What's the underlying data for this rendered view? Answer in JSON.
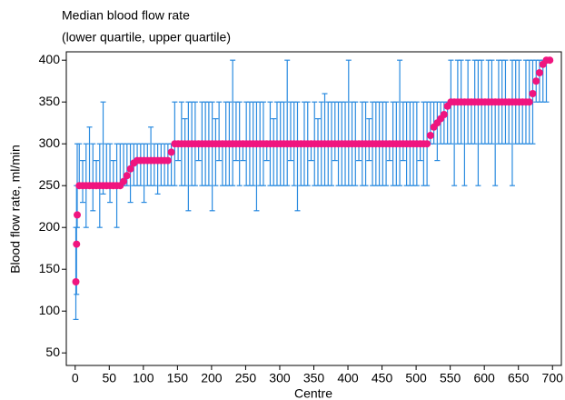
{
  "chart_data": {
    "type": "errorbar",
    "title": "Median blood flow rate",
    "subtitle": "(lower quartile, upper quartile)",
    "x_label": "Centre",
    "y_label": "Blood flow rate, ml/min",
    "xlim": [
      -13,
      713
    ],
    "ylim": [
      35,
      410
    ],
    "xticks": [
      0,
      50,
      100,
      150,
      200,
      250,
      300,
      350,
      400,
      450,
      500,
      550,
      600,
      650,
      700
    ],
    "yticks": [
      50,
      100,
      150,
      200,
      250,
      300,
      350,
      400
    ],
    "median_color": "#f0157f",
    "bar_color": "#2a8be0",
    "x": [
      1,
      2,
      3,
      6,
      11,
      16,
      21,
      26,
      31,
      36,
      41,
      46,
      51,
      56,
      61,
      66,
      71,
      76,
      81,
      86,
      91,
      96,
      101,
      106,
      111,
      116,
      121,
      126,
      131,
      136,
      141,
      146,
      151,
      156,
      161,
      166,
      171,
      176,
      181,
      186,
      191,
      196,
      201,
      206,
      211,
      216,
      221,
      226,
      231,
      236,
      241,
      246,
      251,
      256,
      261,
      266,
      271,
      276,
      281,
      286,
      291,
      296,
      301,
      306,
      311,
      316,
      321,
      326,
      331,
      336,
      341,
      346,
      351,
      356,
      361,
      366,
      371,
      376,
      381,
      386,
      391,
      396,
      401,
      406,
      411,
      416,
      421,
      426,
      431,
      436,
      441,
      446,
      451,
      456,
      461,
      466,
      471,
      476,
      481,
      486,
      491,
      496,
      501,
      506,
      511,
      516,
      521,
      526,
      531,
      536,
      541,
      546,
      551,
      556,
      561,
      566,
      571,
      576,
      581,
      586,
      591,
      596,
      601,
      606,
      611,
      616,
      621,
      626,
      631,
      636,
      641,
      646,
      651,
      656,
      661,
      666,
      671,
      676,
      681,
      686,
      691,
      696
    ],
    "values": [
      135,
      180,
      215,
      250,
      250,
      250,
      250,
      250,
      250,
      250,
      250,
      250,
      250,
      250,
      250,
      250,
      255,
      262,
      270,
      277,
      280,
      280,
      280,
      280,
      280,
      280,
      280,
      280,
      280,
      280,
      290,
      300,
      300,
      300,
      300,
      300,
      300,
      300,
      300,
      300,
      300,
      300,
      300,
      300,
      300,
      300,
      300,
      300,
      300,
      300,
      300,
      300,
      300,
      300,
      300,
      300,
      300,
      300,
      300,
      300,
      300,
      300,
      300,
      300,
      300,
      300,
      300,
      300,
      300,
      300,
      300,
      300,
      300,
      300,
      300,
      300,
      300,
      300,
      300,
      300,
      300,
      300,
      300,
      300,
      300,
      300,
      300,
      300,
      300,
      300,
      300,
      300,
      300,
      300,
      300,
      300,
      300,
      300,
      300,
      300,
      300,
      300,
      300,
      300,
      300,
      300,
      310,
      320,
      325,
      330,
      335,
      345,
      350,
      350,
      350,
      350,
      350,
      350,
      350,
      350,
      350,
      350,
      350,
      350,
      350,
      350,
      350,
      350,
      350,
      350,
      350,
      350,
      350,
      350,
      350,
      350,
      360,
      375,
      385,
      395,
      400,
      400
    ],
    "lower": [
      90,
      120,
      200,
      250,
      230,
      200,
      250,
      220,
      250,
      200,
      240,
      250,
      230,
      250,
      200,
      250,
      250,
      250,
      230,
      250,
      250,
      250,
      230,
      250,
      250,
      250,
      240,
      250,
      250,
      250,
      250,
      250,
      280,
      250,
      250,
      220,
      250,
      250,
      280,
      250,
      250,
      250,
      220,
      250,
      280,
      250,
      250,
      250,
      250,
      280,
      250,
      280,
      250,
      250,
      250,
      220,
      250,
      250,
      280,
      250,
      250,
      250,
      250,
      250,
      250,
      280,
      250,
      220,
      250,
      250,
      250,
      280,
      250,
      250,
      250,
      250,
      250,
      250,
      280,
      250,
      250,
      250,
      250,
      250,
      250,
      280,
      250,
      250,
      280,
      250,
      250,
      250,
      250,
      250,
      280,
      250,
      250,
      250,
      280,
      250,
      250,
      250,
      250,
      280,
      250,
      250,
      300,
      300,
      280,
      300,
      300,
      300,
      300,
      250,
      300,
      300,
      250,
      300,
      300,
      300,
      250,
      300,
      300,
      300,
      300,
      250,
      300,
      300,
      300,
      300,
      250,
      300,
      300,
      300,
      300,
      300,
      300,
      350,
      350,
      350,
      350,
      400
    ],
    "upper": [
      200,
      250,
      300,
      300,
      280,
      300,
      320,
      300,
      280,
      300,
      350,
      300,
      300,
      280,
      300,
      300,
      300,
      300,
      300,
      300,
      300,
      300,
      300,
      300,
      320,
      300,
      300,
      300,
      300,
      300,
      300,
      350,
      300,
      350,
      330,
      350,
      350,
      350,
      300,
      350,
      350,
      350,
      350,
      330,
      350,
      300,
      350,
      350,
      400,
      350,
      350,
      300,
      350,
      350,
      350,
      350,
      350,
      350,
      300,
      350,
      330,
      350,
      350,
      350,
      400,
      350,
      350,
      350,
      300,
      350,
      350,
      300,
      350,
      330,
      350,
      360,
      350,
      350,
      350,
      350,
      350,
      350,
      400,
      350,
      350,
      300,
      350,
      350,
      330,
      350,
      350,
      350,
      350,
      350,
      300,
      350,
      350,
      400,
      350,
      350,
      350,
      350,
      350,
      300,
      350,
      350,
      350,
      350,
      350,
      350,
      350,
      350,
      400,
      350,
      400,
      400,
      350,
      400,
      350,
      400,
      400,
      400,
      350,
      400,
      400,
      350,
      400,
      400,
      400,
      350,
      400,
      400,
      400,
      350,
      400,
      400,
      400,
      400,
      400,
      400,
      400,
      400
    ]
  }
}
